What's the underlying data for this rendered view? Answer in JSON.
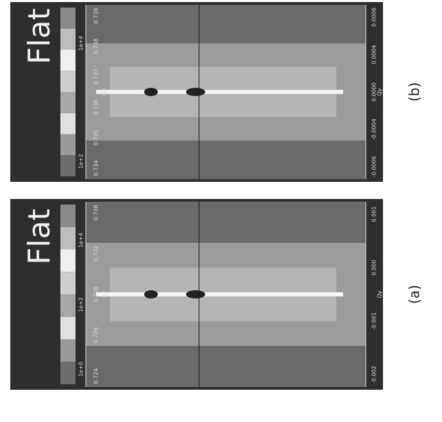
{
  "panels": [
    {
      "caption": "(a)",
      "title": "Flat",
      "qz_label": "Qz",
      "qy_label": "Qy",
      "qz_ticks": [
        "0.738",
        "0.732",
        "0.728",
        "0.726",
        "0.724"
      ],
      "qy_ticks": [
        "0.001",
        "0.000",
        "-0.001",
        "-0.002"
      ],
      "colorbar_ticks": [
        "1e+4",
        "1e+2",
        "1e+0"
      ]
    },
    {
      "caption": "(b)",
      "title": "Flat",
      "qz_label": "Qz",
      "qy_label": "Qy",
      "qz_ticks": [
        "0.739",
        "0.738",
        "0.737",
        "0.736",
        "0.735",
        "0.734"
      ],
      "qy_ticks": [
        "0.0006",
        "0.0004",
        "0.0000",
        "-0.0004",
        "-0.0006"
      ],
      "colorbar_ticks": [
        "1e+4",
        "1e+2"
      ]
    }
  ]
}
